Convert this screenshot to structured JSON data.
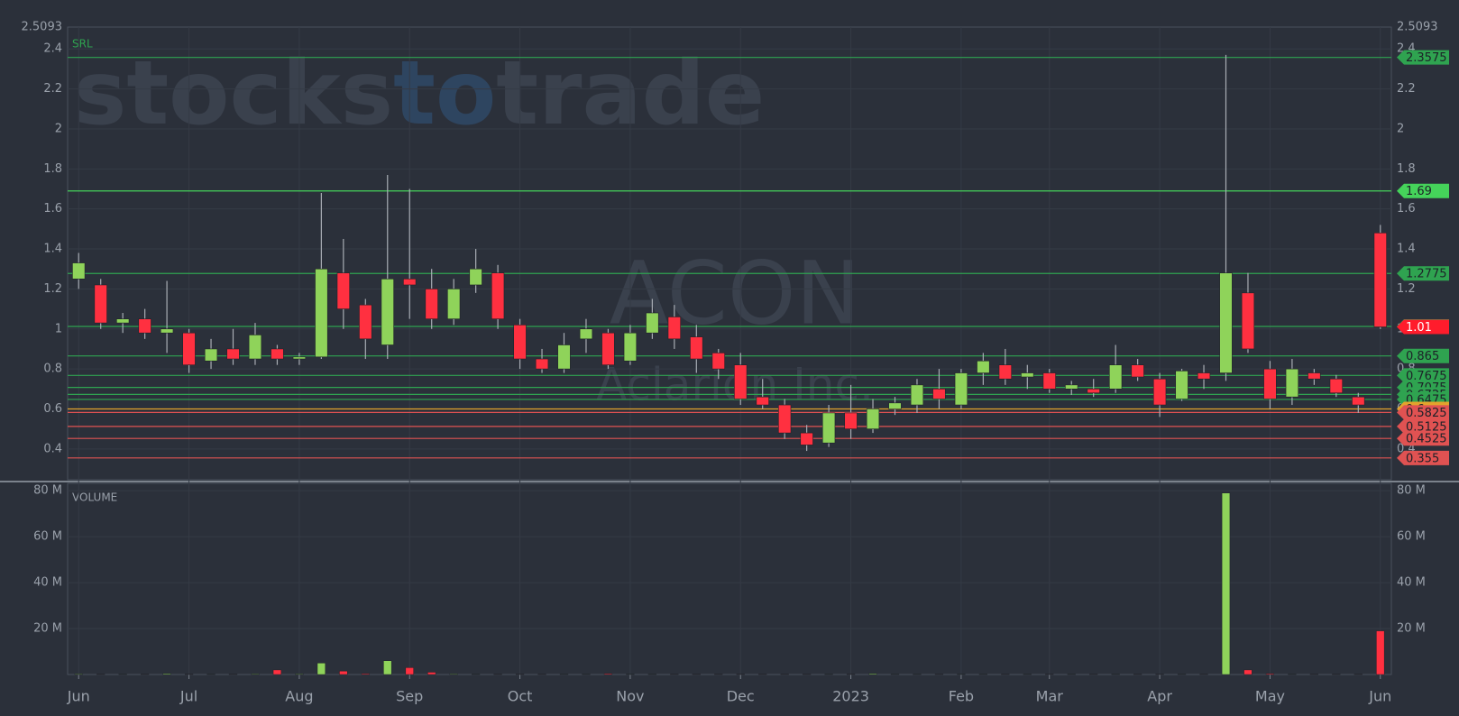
{
  "chart_data": [
    {
      "type": "candlestick",
      "brand": [
        "stocks",
        "to",
        "trade"
      ],
      "ticker": "ACON",
      "company": "Aclarion Inc.",
      "indicator": "SRL",
      "categories": [
        "Jun",
        null,
        null,
        null,
        null,
        "Jul",
        null,
        null,
        null,
        null,
        "Aug",
        null,
        null,
        null,
        null,
        "Sep",
        null,
        null,
        null,
        null,
        "Oct",
        null,
        null,
        null,
        null,
        "Nov",
        null,
        null,
        null,
        null,
        "Dec",
        null,
        null,
        null,
        null,
        "2023",
        null,
        null,
        null,
        null,
        "Feb",
        null,
        null,
        null,
        "Mar",
        null,
        null,
        null,
        null,
        "Apr",
        null,
        null,
        null,
        null,
        "May",
        null,
        null,
        null,
        null,
        "Jun"
      ],
      "open": [
        1.25,
        1.22,
        1.03,
        1.05,
        0.98,
        0.98,
        0.84,
        0.9,
        0.85,
        0.9,
        0.85,
        0.86,
        1.28,
        1.12,
        0.92,
        1.25,
        1.2,
        1.05,
        1.22,
        1.28,
        1.02,
        0.85,
        0.8,
        0.95,
        0.98,
        0.84,
        0.98,
        1.06,
        0.96,
        0.88,
        0.82,
        0.66,
        0.62,
        0.48,
        0.43,
        0.58,
        0.5,
        0.6,
        0.62,
        0.7,
        0.62,
        0.78,
        0.82,
        0.76,
        0.78,
        0.7,
        0.7,
        0.7,
        0.82,
        0.75,
        0.65,
        0.78,
        0.78,
        1.18,
        0.8,
        0.66,
        0.78,
        0.75,
        0.66,
        1.48
      ],
      "high": [
        1.38,
        1.25,
        1.08,
        1.1,
        1.24,
        1.0,
        0.95,
        1.0,
        1.03,
        0.92,
        0.88,
        1.68,
        1.45,
        1.15,
        1.77,
        1.7,
        1.3,
        1.25,
        1.4,
        1.32,
        1.05,
        0.9,
        0.98,
        1.05,
        1.0,
        1.02,
        1.15,
        1.12,
        1.02,
        0.9,
        0.88,
        0.75,
        0.65,
        0.52,
        0.62,
        0.72,
        0.65,
        0.66,
        0.75,
        0.8,
        0.8,
        0.88,
        0.9,
        0.82,
        0.8,
        0.74,
        0.75,
        0.92,
        0.85,
        0.78,
        0.8,
        0.82,
        2.37,
        1.28,
        0.84,
        0.85,
        0.8,
        0.77,
        0.68,
        1.52
      ],
      "low": [
        1.2,
        1.0,
        0.98,
        0.95,
        0.88,
        0.78,
        0.8,
        0.82,
        0.82,
        0.82,
        0.82,
        0.85,
        1.0,
        0.85,
        0.85,
        1.05,
        1.0,
        1.02,
        1.18,
        1.0,
        0.8,
        0.78,
        0.78,
        0.88,
        0.8,
        0.82,
        0.95,
        0.9,
        0.78,
        0.75,
        0.62,
        0.6,
        0.45,
        0.39,
        0.41,
        0.45,
        0.48,
        0.57,
        0.58,
        0.6,
        0.6,
        0.72,
        0.72,
        0.7,
        0.68,
        0.67,
        0.66,
        0.68,
        0.74,
        0.56,
        0.64,
        0.7,
        0.74,
        0.88,
        0.6,
        0.62,
        0.72,
        0.66,
        0.58,
        1.0
      ],
      "close": [
        1.33,
        1.03,
        1.05,
        0.98,
        1.0,
        0.82,
        0.9,
        0.85,
        0.97,
        0.85,
        0.86,
        1.3,
        1.1,
        0.95,
        1.25,
        1.22,
        1.05,
        1.2,
        1.3,
        1.05,
        0.85,
        0.8,
        0.92,
        1.0,
        0.82,
        0.98,
        1.08,
        0.95,
        0.85,
        0.8,
        0.65,
        0.62,
        0.48,
        0.42,
        0.58,
        0.5,
        0.6,
        0.63,
        0.72,
        0.65,
        0.78,
        0.84,
        0.75,
        0.78,
        0.7,
        0.72,
        0.68,
        0.82,
        0.76,
        0.62,
        0.79,
        0.75,
        1.28,
        0.9,
        0.65,
        0.8,
        0.75,
        0.68,
        0.62,
        1.01
      ],
      "up_color": "#8fd35a",
      "down_color": "#ff3040",
      "ylim": [
        0.246,
        2.5093
      ],
      "yticks": [
        0.4,
        0.6,
        0.8,
        1,
        1.2,
        1.4,
        1.6,
        1.8,
        2,
        2.2,
        2.4,
        2.5093
      ],
      "grid": true,
      "levels": [
        {
          "value": 2.3575,
          "color": "#2fa350"
        },
        {
          "value": 1.69,
          "color": "#45d35a"
        },
        {
          "value": 1.2775,
          "color": "#2fa350"
        },
        {
          "value": 1.0125,
          "color": "#2fa350"
        },
        {
          "value": 0.865,
          "color": "#2fa350"
        },
        {
          "value": 0.7675,
          "color": "#2fa350"
        },
        {
          "value": 0.7075,
          "color": "#2fa350"
        },
        {
          "value": 0.6725,
          "color": "#2fa350"
        },
        {
          "value": 0.6475,
          "color": "#2fa350"
        },
        {
          "value": 0.6,
          "color": "#e3a32c"
        },
        {
          "value": 0.5825,
          "color": "#e05252"
        },
        {
          "value": 0.5125,
          "color": "#e05252"
        },
        {
          "value": 0.4525,
          "color": "#e05252"
        },
        {
          "value": 0.355,
          "color": "#e05252"
        }
      ],
      "last_price": {
        "value": 1.01,
        "color": "#ff1c2c"
      }
    },
    {
      "type": "bar",
      "title": "VOLUME",
      "values": [
        0.3,
        0.2,
        0.2,
        0.2,
        0.4,
        0.2,
        0.2,
        0.2,
        0.3,
        2,
        0.3,
        5,
        1.5,
        0.4,
        6,
        3,
        1,
        0.3,
        0.2,
        0.2,
        0.2,
        0.2,
        0.2,
        0.2,
        0.4,
        0.2,
        0.2,
        0.2,
        0.2,
        0.2,
        0.2,
        0.2,
        0.2,
        0.2,
        0.2,
        0.2,
        0.4,
        0.2,
        0.2,
        0.2,
        0.2,
        0.2,
        0.2,
        0.2,
        0.2,
        0.2,
        0.2,
        0.2,
        0.2,
        0.2,
        0.2,
        0.2,
        79,
        2,
        0.4,
        0.2,
        0.2,
        0.2,
        0.2,
        19
      ],
      "ylim": [
        0,
        83.2
      ],
      "yticks": [
        {
          "value": 20,
          "label": "20 M"
        },
        {
          "value": 40,
          "label": "40 M"
        },
        {
          "value": 60,
          "label": "60 M"
        },
        {
          "value": 80,
          "label": "80 M"
        }
      ]
    }
  ]
}
